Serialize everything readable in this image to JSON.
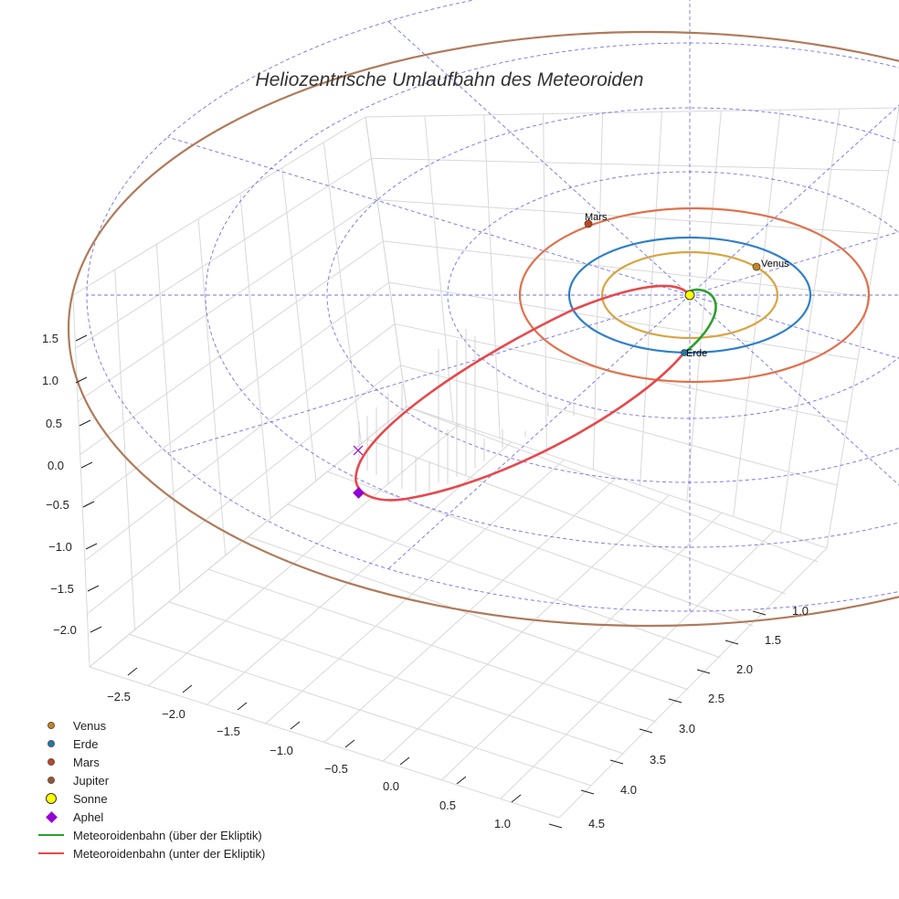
{
  "chart_data": {
    "type": "3d-line",
    "title": "Heliozentrische Umlaufbahn des Meteoroiden",
    "axes": {
      "x": {
        "ticks": [
          -2.5,
          -2.0,
          -1.5,
          -1.0,
          -0.5,
          0.0,
          0.5,
          1.0
        ],
        "tick_labels": [
          "−2.5",
          "−2.0",
          "−1.5",
          "−1.0",
          "−0.5",
          "0.0",
          "0.5",
          "1.0"
        ]
      },
      "y": {
        "ticks": [
          1.0,
          1.5,
          2.0,
          2.5,
          3.0,
          3.5,
          4.0,
          4.5
        ],
        "tick_labels": [
          "1.0",
          "1.5",
          "2.0",
          "2.5",
          "3.0",
          "3.5",
          "4.0",
          "4.5"
        ]
      },
      "z": {
        "ticks": [
          1.5,
          1.0,
          0.5,
          0.0,
          -0.5,
          -1.0,
          -1.5,
          -2.0
        ],
        "tick_labels": [
          "1.5",
          "1.0",
          "0.5",
          "0.0",
          "−0.5",
          "−1.0",
          "−1.5",
          "−2.0"
        ]
      }
    },
    "grid": true,
    "planets": [
      {
        "name": "Venus",
        "label": "Venus",
        "orbit_color": "#d9a441",
        "marker_color": "#c8861a"
      },
      {
        "name": "Erde",
        "label": "Erde",
        "orbit_color": "#2f7fc8",
        "marker_color": "#1f77b4"
      },
      {
        "name": "Mars",
        "label": "Mars",
        "orbit_color": "#e0704b",
        "marker_color": "#c8431a"
      },
      {
        "name": "Jupiter",
        "orbit_color": "#b07a5a",
        "marker_color": "#a0522d"
      }
    ],
    "sun": {
      "name": "Sonne",
      "color": "#ffff00"
    },
    "aphel": {
      "name": "Aphel",
      "color": "#9400d3"
    },
    "series": [
      {
        "name": "Meteoroidenbahn (über der Ekliptik)",
        "color": "#2ca02c"
      },
      {
        "name": "Meteoroidenbahn (unter der Ekliptik)",
        "color": "#e8474b"
      }
    ],
    "legend_position": "bottom-left"
  },
  "legend": [
    {
      "label": "Venus",
      "kind": "dot",
      "color": "#c8861a"
    },
    {
      "label": "Erde",
      "kind": "dot",
      "color": "#1f77b4"
    },
    {
      "label": "Mars",
      "kind": "dot",
      "color": "#c8431a"
    },
    {
      "label": "Jupiter",
      "kind": "dot",
      "color": "#a0522d"
    },
    {
      "label": "Sonne",
      "kind": "sun",
      "color": "#ffff00"
    },
    {
      "label": "Aphel",
      "kind": "diamond",
      "color": "#9400d3"
    },
    {
      "label": "Meteoroidenbahn (über der Ekliptik)",
      "kind": "line",
      "color": "#2ca02c"
    },
    {
      "label": "Meteoroidenbahn (unter der Ekliptik)",
      "kind": "line",
      "color": "#e8474b"
    }
  ]
}
